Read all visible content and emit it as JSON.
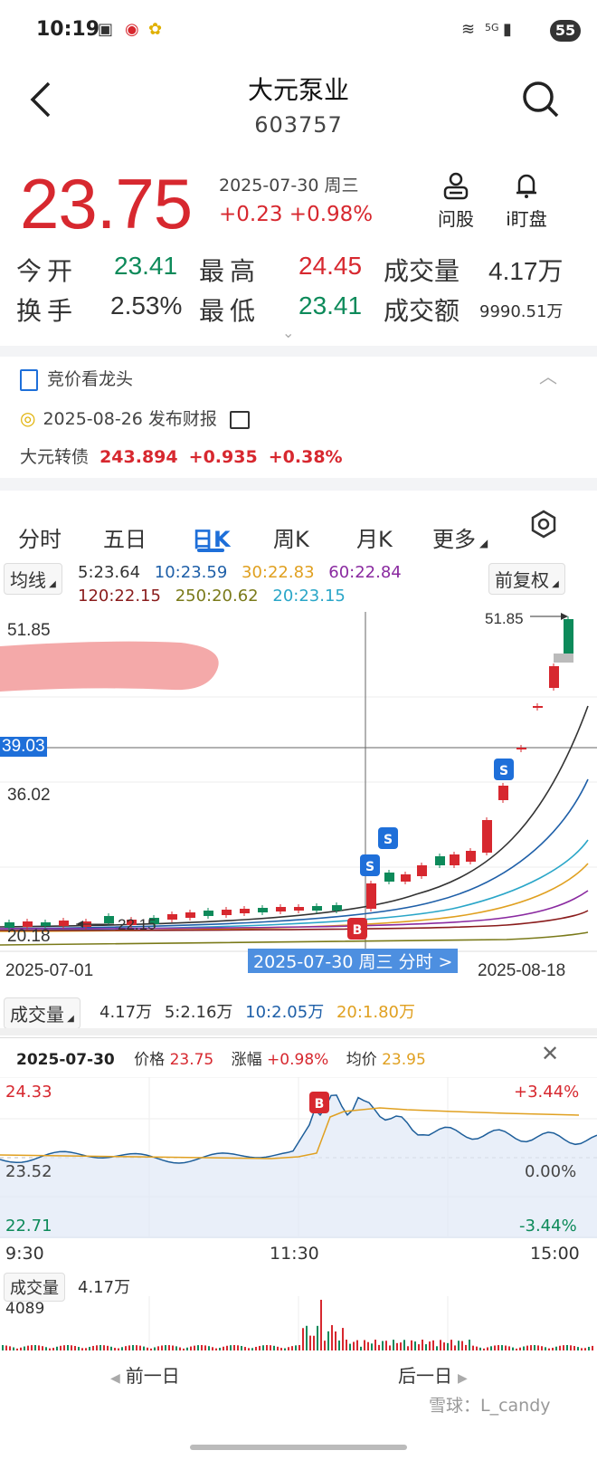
{
  "status_bar": {
    "time": "10:19",
    "battery": "55",
    "net": "5G"
  },
  "header": {
    "title": "大元泵业",
    "code": "603757"
  },
  "quote": {
    "price": "23.75",
    "date": "2025-07-30 周三",
    "change": "+0.23 +0.98%",
    "tools": [
      {
        "label": "问股",
        "icon": "person-icon"
      },
      {
        "label": "i盯盘",
        "icon": "bell-icon"
      }
    ],
    "rows": [
      [
        {
          "label": "今开",
          "value": "23.41",
          "color": "#0d8a5a"
        },
        {
          "label": "最高",
          "value": "24.45",
          "color": "#d7282f"
        },
        {
          "label": "成交量",
          "value": "4.17万",
          "color": "#333333"
        }
      ],
      [
        {
          "label": "换手",
          "value": "2.53%",
          "color": "#333333"
        },
        {
          "label": "最低",
          "value": "23.41",
          "color": "#0d8a5a"
        },
        {
          "label": "成交额",
          "value": "9990.51万",
          "color": "#333333"
        }
      ]
    ]
  },
  "info": {
    "auction": "竞价看龙头",
    "report_date": "2025-08-26",
    "report_label": "发布财报",
    "bond_name": "大元转债",
    "bond_price": "243.894",
    "bond_change": "+0.935",
    "bond_pct": "+0.38%"
  },
  "tabs": [
    "分时",
    "五日",
    "日K",
    "周K",
    "月K",
    "更多"
  ],
  "kline": {
    "ma_button": "均线",
    "adjust_button": "前复权",
    "ma_legend_row1": [
      {
        "text": "5:23.64",
        "color": "#333333"
      },
      {
        "text": "10:23.59",
        "color": "#1e5fa8"
      },
      {
        "text": "30:22.83",
        "color": "#e0a020"
      },
      {
        "text": "60:22.84",
        "color": "#8a2aa0"
      }
    ],
    "ma_legend_row2": [
      {
        "text": "120:22.15",
        "color": "#8a1c1c"
      },
      {
        "text": "250:20.62",
        "color": "#7a7a1a"
      },
      {
        "text": "20:23.15",
        "color": "#2aa6c8"
      }
    ],
    "y_top": "51.85",
    "y_cross": "39.03",
    "y_mid": "36.02",
    "y_low": "20.18",
    "low_mark": "22.15",
    "high_mark": "51.85",
    "date_start": "2025-07-01",
    "date_end": "2025-08-18",
    "cross_date": "2025-07-30 周三 分时 >",
    "b_marker": "B",
    "s_marker": "S",
    "vol_button": "成交量",
    "vol_legend": [
      {
        "text": "4.17万",
        "color": "#333333"
      },
      {
        "text": "5:2.16万",
        "color": "#333333"
      },
      {
        "text": "10:2.05万",
        "color": "#1e5fa8"
      },
      {
        "text": "20:1.80万",
        "color": "#e0a020"
      }
    ]
  },
  "intraday": {
    "date": "2025-07-30",
    "price_label": "价格",
    "price": "23.75",
    "chg_label": "涨幅",
    "chg": "+0.98%",
    "avg_label": "均价",
    "avg": "23.95",
    "y_top": "24.33",
    "y_mid": "23.52",
    "y_low": "22.71",
    "pct_top": "+3.44%",
    "pct_mid": "0.00%",
    "pct_low": "-3.44%",
    "t_start": "9:30",
    "t_mid": "11:30",
    "t_end": "15:00",
    "vol_label": "成交量",
    "vol_value": "4.17万",
    "vol_max": "4089"
  },
  "bottom": {
    "prev": "前一日",
    "next": "后一日",
    "watermark": "雪球：L_candy"
  }
}
